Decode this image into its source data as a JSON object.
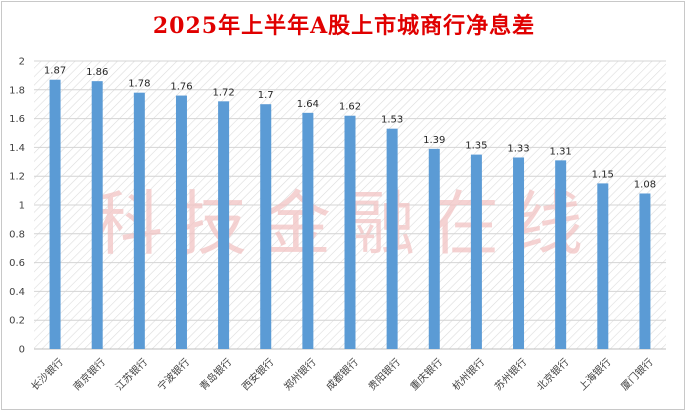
{
  "chart_data": {
    "type": "bar",
    "title": "2025年上半年A股上市城商行净息差",
    "xlabel": "",
    "ylabel": "",
    "ylim": [
      0,
      2
    ],
    "y_ticks": [
      "0",
      "0.2",
      "0.4",
      "0.6",
      "0.8",
      "1",
      "1.2",
      "1.4",
      "1.6",
      "1.8",
      "2"
    ],
    "grid": true,
    "legend": "none",
    "categories": [
      "长沙银行",
      "南京银行",
      "江苏银行",
      "宁波银行",
      "青岛银行",
      "西安银行",
      "郑州银行",
      "成都银行",
      "贵阳银行",
      "重庆银行",
      "杭州银行",
      "苏州银行",
      "北京银行",
      "上海银行",
      "厦门银行"
    ],
    "values": [
      1.87,
      1.86,
      1.78,
      1.76,
      1.72,
      1.7,
      1.64,
      1.62,
      1.53,
      1.39,
      1.35,
      1.33,
      1.31,
      1.15,
      1.08
    ],
    "value_labels": [
      "1.87",
      "1.86",
      "1.78",
      "1.76",
      "1.72",
      "1.7",
      "1.64",
      "1.62",
      "1.53",
      "1.39",
      "1.35",
      "1.33",
      "1.31",
      "1.15",
      "1.08"
    ],
    "bar_color": "#5b9bd5",
    "title_color": "#e00000"
  },
  "watermark": {
    "text": "科技金融在线",
    "color": "#f2c4c4"
  }
}
